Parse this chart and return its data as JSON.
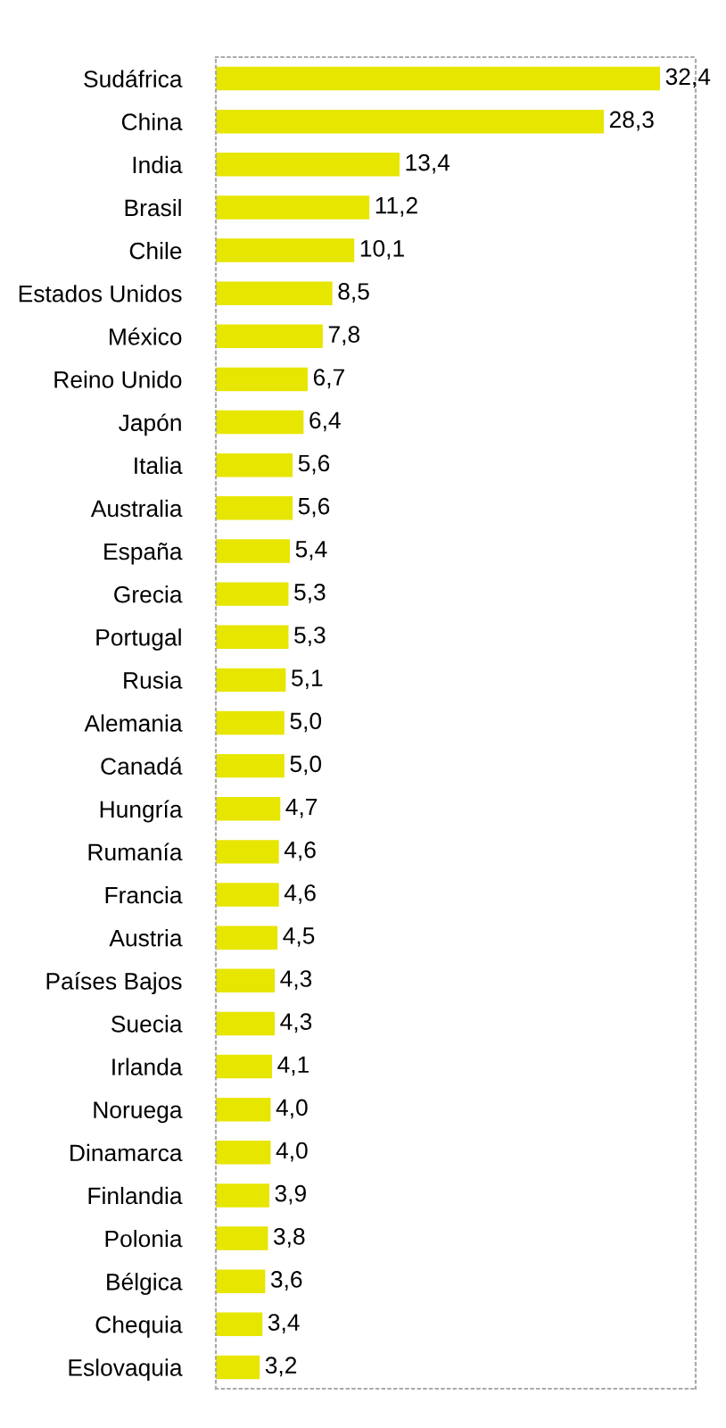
{
  "chart_data": {
    "type": "bar",
    "orientation": "horizontal",
    "categories": [
      "Sudáfrica",
      "China",
      "India",
      "Brasil",
      "Chile",
      "Estados Unidos",
      "México",
      "Reino Unido",
      "Japón",
      "Italia",
      "Australia",
      "España",
      "Grecia",
      "Portugal",
      "Rusia",
      "Alemania",
      "Canadá",
      "Hungría",
      "Rumanía",
      "Francia",
      "Austria",
      "Países Bajos",
      "Suecia",
      "Irlanda",
      "Noruega",
      "Dinamarca",
      "Finlandia",
      "Polonia",
      "Bélgica",
      "Chequia",
      "Eslovaquia"
    ],
    "values": [
      32.4,
      28.3,
      13.4,
      11.2,
      10.1,
      8.5,
      7.8,
      6.7,
      6.4,
      5.6,
      5.6,
      5.4,
      5.3,
      5.3,
      5.1,
      5.0,
      5.0,
      4.7,
      4.6,
      4.6,
      4.5,
      4.3,
      4.3,
      4.1,
      4.0,
      4.0,
      3.9,
      3.8,
      3.6,
      3.4,
      3.2
    ],
    "value_labels": [
      "32,4",
      "28,3",
      "13,4",
      "11,2",
      "10,1",
      "8,5",
      "7,8",
      "6,7",
      "6,4",
      "5,6",
      "5,6",
      "5,4",
      "5,3",
      "5,3",
      "5,1",
      "5,0",
      "5,0",
      "4,7",
      "4,6",
      "4,6",
      "4,5",
      "4,3",
      "4,3",
      "4,1",
      "4,0",
      "4,0",
      "3,9",
      "3,8",
      "3,6",
      "3,4",
      "3,2"
    ],
    "color": "#e6e600",
    "xlim": [
      0,
      35
    ],
    "tick_labels": "y",
    "grid": false,
    "legend": false
  }
}
